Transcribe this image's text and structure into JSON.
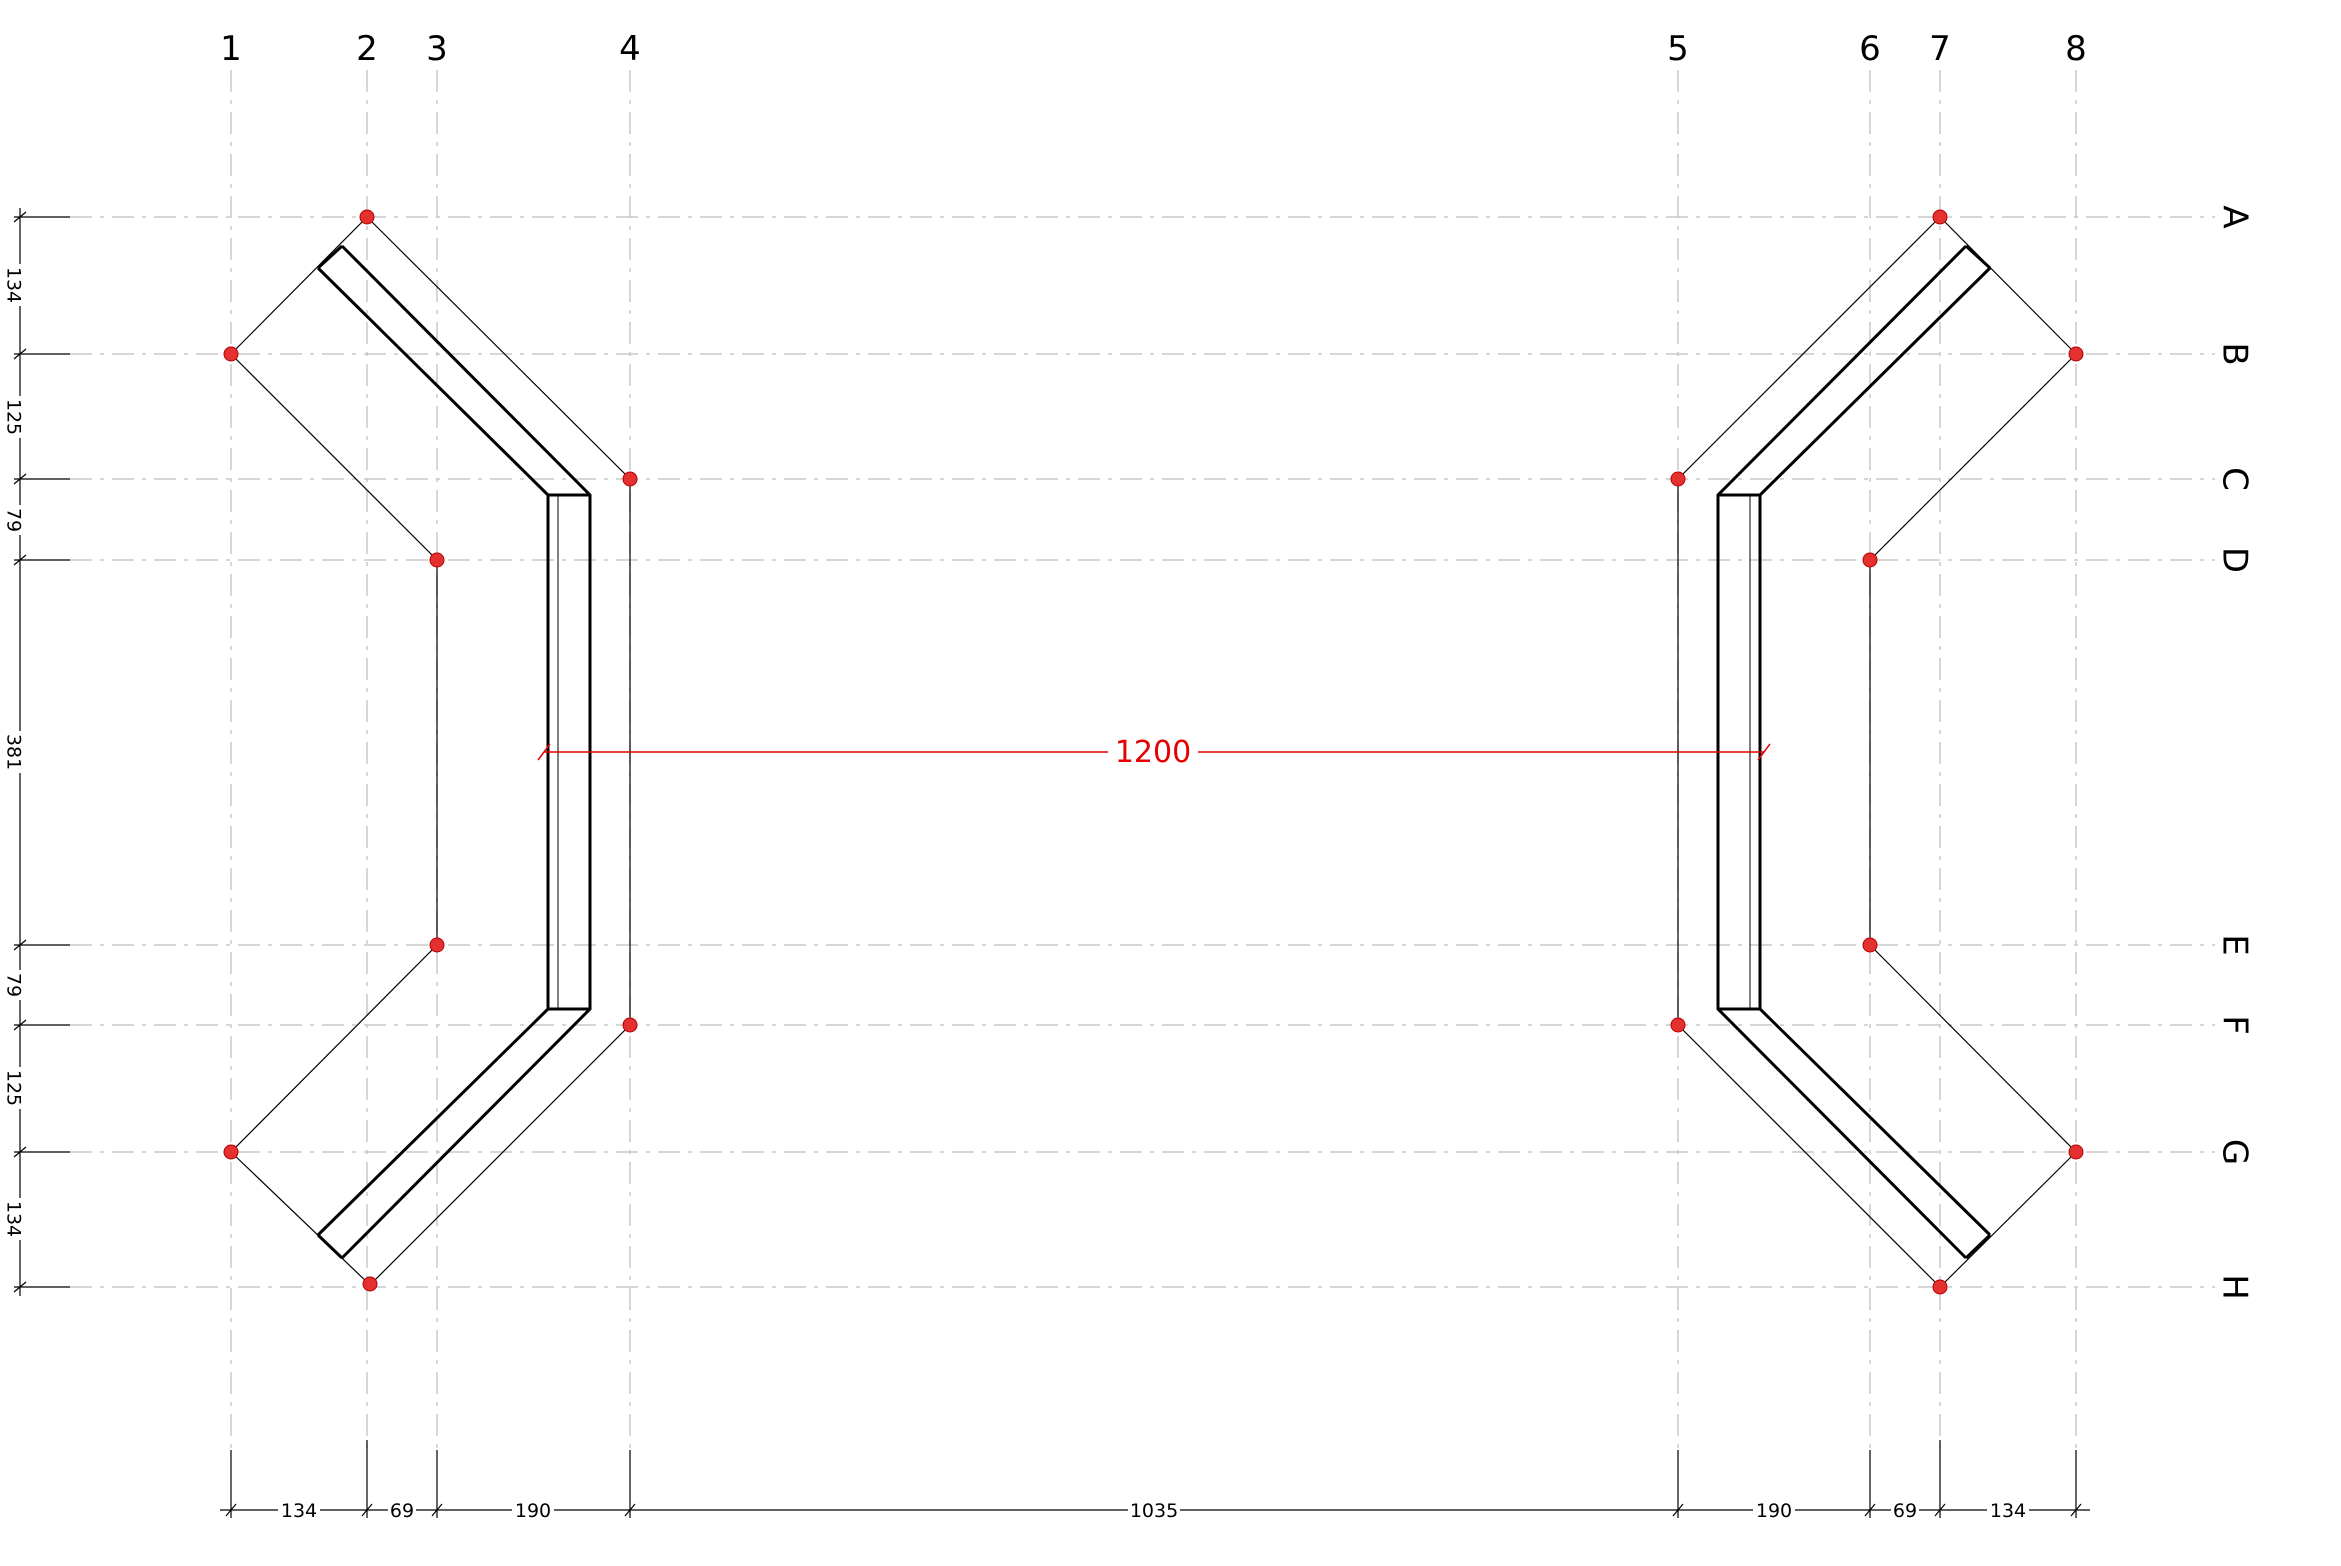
{
  "grid": {
    "columns": [
      "1",
      "2",
      "3",
      "4",
      "5",
      "6",
      "7",
      "8"
    ],
    "rows": [
      "A",
      "B",
      "C",
      "D",
      "E",
      "F",
      "G",
      "H"
    ]
  },
  "dimensions": {
    "horizontal": [
      "134",
      "69",
      "190",
      "1035",
      "190",
      "69",
      "134"
    ],
    "vertical": [
      "134",
      "125",
      "79",
      "381",
      "79",
      "125",
      "134"
    ],
    "span": "1200"
  },
  "colors": {
    "grid": "#c8c8c8",
    "node": "#e53030",
    "span_dimension": "#e60000",
    "linework": "#000000"
  }
}
